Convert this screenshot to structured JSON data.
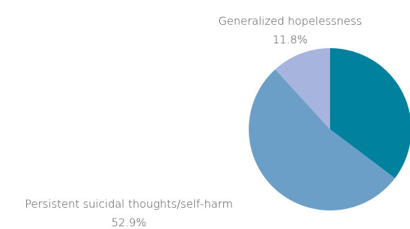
{
  "chart_data": {
    "type": "pie",
    "categories": [
      "",
      "Persistent suicidal thoughts/self-harm",
      "Generalized hopelessness"
    ],
    "values": [
      35.3,
      52.9,
      11.8
    ],
    "value_labels": [
      "",
      "52.9%",
      "11.8%"
    ],
    "colors": [
      "#00829e",
      "#6b9fc7",
      "#a7b4dd"
    ],
    "start": "12 o'clock",
    "direction": "clockwise",
    "title": "",
    "legend": "none"
  }
}
